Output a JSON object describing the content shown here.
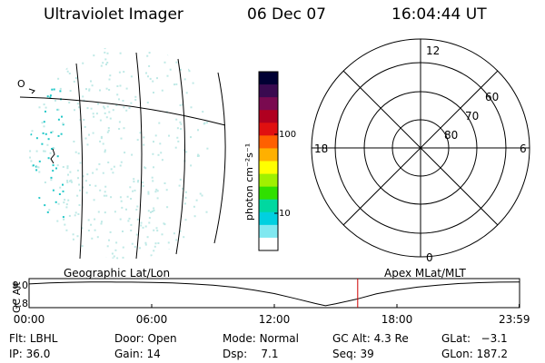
{
  "header": {
    "instrument": "Ultraviolet Imager",
    "date": "06 Dec 07",
    "time": "16:04:44 UT"
  },
  "geo_panel": {
    "caption": "Geographic Lat/Lon",
    "marker_label": "O",
    "colors": {
      "emission_low": "#bfe9e6",
      "emission_high": "#22c8c8"
    }
  },
  "colorbar": {
    "units_label": "photon cm⁻²s⁻¹",
    "ticks": [
      "100",
      "10"
    ],
    "scale": "log",
    "colors_top_to_bottom": [
      "#000033",
      "#3a0a50",
      "#7a0a50",
      "#b00020",
      "#e01010",
      "#ff6000",
      "#ffb000",
      "#ffff00",
      "#a0f000",
      "#30e000",
      "#00d8a0",
      "#00d0e0",
      "#80e8f0",
      "#ffffff"
    ]
  },
  "polar_panel": {
    "caption": "Apex MLat/MLT",
    "mlt_labels": {
      "top": "12",
      "bottom": "0",
      "left": "18",
      "right": "6"
    },
    "lat_labels": [
      "60",
      "70",
      "80"
    ]
  },
  "timeline": {
    "y_axis_label": "GC Alt",
    "y_ticks": [
      "9.0",
      "1.8"
    ],
    "x_ticks": [
      "00:00",
      "06:00",
      "12:00",
      "18:00",
      "23:59"
    ],
    "x_tick_hours": [
      0,
      6,
      12,
      18,
      23.98
    ],
    "y_tick_values": [
      9.0,
      1.8
    ],
    "current_time_hours": 16.08,
    "marker_color": "#cc0000",
    "orbit_curve": [
      [
        0,
        8.4
      ],
      [
        1,
        8.7
      ],
      [
        2,
        8.9
      ],
      [
        3,
        9.0
      ],
      [
        4,
        9.0
      ],
      [
        5,
        8.95
      ],
      [
        6,
        8.85
      ],
      [
        7,
        8.7
      ],
      [
        8,
        8.4
      ],
      [
        9,
        8.0
      ],
      [
        10,
        7.4
      ],
      [
        11,
        6.5
      ],
      [
        12,
        5.4
      ],
      [
        13,
        3.9
      ],
      [
        14,
        2.3
      ],
      [
        14.5,
        1.6
      ],
      [
        15,
        2.2
      ],
      [
        16,
        3.6
      ],
      [
        17,
        5.3
      ],
      [
        18,
        6.5
      ],
      [
        19,
        7.4
      ],
      [
        20,
        8.0
      ],
      [
        21,
        8.5
      ],
      [
        22,
        8.8
      ],
      [
        23,
        8.95
      ],
      [
        24,
        9.0
      ]
    ]
  },
  "status": {
    "row1": [
      {
        "key": "Flt:",
        "value": "LBHL"
      },
      {
        "key": "Door:",
        "value": "Open"
      },
      {
        "key": "Mode:",
        "value": "Normal"
      },
      {
        "key": "GC Alt:",
        "value": "4.3 Re"
      },
      {
        "key": "GLat:",
        "value": "−3.1"
      }
    ],
    "row2": [
      {
        "key": "IP:",
        "value": "36.0"
      },
      {
        "key": "Gain:",
        "value": "14"
      },
      {
        "key": "Dsp:",
        "value": "7.1"
      },
      {
        "key": "Seq:",
        "value": "39"
      },
      {
        "key": "GLon:",
        "value": "187.2"
      }
    ]
  }
}
